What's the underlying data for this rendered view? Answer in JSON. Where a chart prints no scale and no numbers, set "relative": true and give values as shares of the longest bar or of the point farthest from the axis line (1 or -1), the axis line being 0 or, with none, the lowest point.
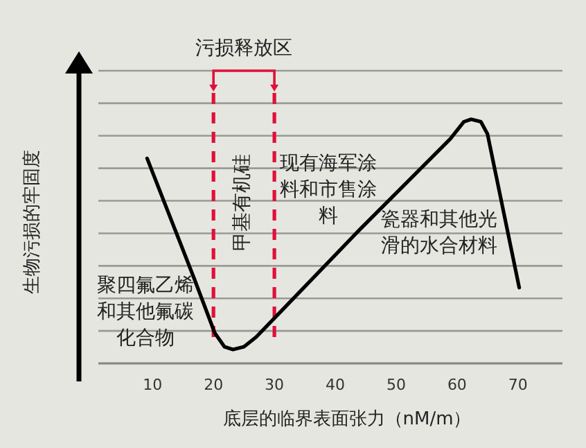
{
  "chart_data": {
    "type": "line",
    "relative": true,
    "xlabel": "底层的临界表面张力（nM/m）",
    "ylabel": "生物污损的牢固度",
    "xlim": [
      1.1,
      77.3
    ],
    "xticks": [
      10,
      20,
      30,
      40,
      50,
      60,
      70
    ],
    "grid": "y",
    "series": [
      {
        "color": "#000000",
        "x": [
          9.1,
          16.8,
          20.2,
          21.8,
          23.2,
          25,
          27,
          29.8,
          44.1,
          58.9,
          61.1,
          62.3,
          63.9,
          65,
          70.2
        ],
        "values": [
          0.84,
          0.35,
          0.125,
          0.068,
          0.057,
          0.068,
          0.108,
          0.18,
          0.55,
          0.92,
          0.99,
          1.0,
          0.99,
          0.94,
          0.31
        ]
      }
    ],
    "ref_lines": [
      {
        "axis": "x",
        "value": 20,
        "color": "#e0103a",
        "line_style": "dashed"
      },
      {
        "axis": "x",
        "value": 30,
        "color": "#e0103a",
        "line_style": "dashed"
      }
    ],
    "annotations": [
      "污损释放区",
      "聚四氟乙烯和其他氟碳化合物",
      "甲基有机硅",
      "现有海军涂料和市售涂料",
      "瓷器和其他光滑的水合材料"
    ]
  }
}
